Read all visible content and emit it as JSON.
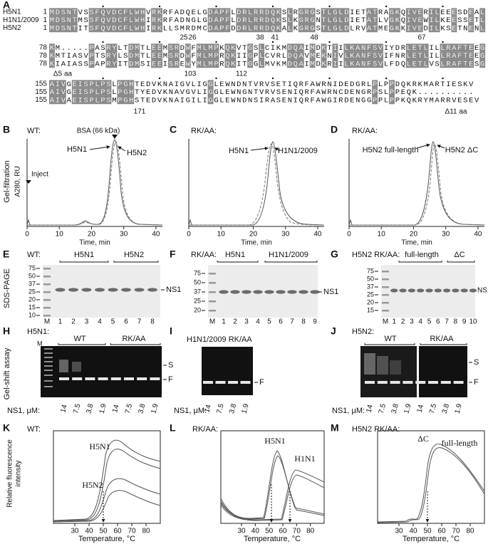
{
  "panel_a": {
    "label": "A",
    "blocks": [
      {
        "rows": [
          {
            "name": "H5N1",
            "start": "1",
            "sequence": "MDSNTVSSFQVDCFLWHVRKRFADQELGDAPFLDRLRRDQKSLRGRGSTLGLDIETATRAGKQIVERILEEESDEAL"
          },
          {
            "name": "H1N1/2009",
            "start": "1",
            "sequence": "MDSNTMSSFQVDCFLWHIRKRFADNGLGDAPFLDRLRRDQKSLKGRGNTLGLDIETATLVGKQIVEWILKEESSETL"
          },
          {
            "name": "H5N2",
            "start": "1",
            "sequence": "MDSNTITSFQVDCFLWHIRKLLSMRDMCDAPFDDRLRRDQKALKGRGSTLGLDLRVATMEGKKIVEDILKSETNENL"
          }
        ],
        "notes": [
          "25",
          "26",
          "38",
          "41",
          "48",
          "67"
        ]
      },
      {
        "rows": [
          {
            "name": "",
            "start": "78",
            "sequence": "KM.....PASRYLTDMTLEEMSRDWFMLMPKQKVTGSLCIKMDQAIMDKTIILKANFSVIYDRLETLILLRAFTEEG"
          },
          {
            "name": "",
            "start": "78",
            "sequence": "KMTIASVPTSRYLSDMTLEEMSRDWFMLMPRQKIIGPLCVRLDQAVMEKNIVLKANFSVIFNRLETLILLRAFTEEG"
          },
          {
            "name": "",
            "start": "78",
            "sequence": "KIAIASSPAPRYITDMSIEEISREWYMLMPRQKITGGLMVKMDQAIMDKRIILKANFSVLFDQLETLVSLRAFTESG"
          }
        ],
        "notes": [
          "Δ5 aa",
          "103",
          "112"
        ]
      },
      {
        "rows": [
          {
            "name": "",
            "start": "155",
            "sequence": "AIVGEISPLPSLPGHTEDVKNAIGVLIGGLEWNDNTVRVSETIQRFAWRNIDEDGRLPLPPDQKRKMARTIESKV"
          },
          {
            "name": "",
            "start": "155",
            "sequence": "AIVGEISPLPSLPGHTYEDVKNAVGVLIGGLEWNGNTVRVSENIQRFAWRNCDENGRPSLPPEQK.........."
          },
          {
            "name": "",
            "start": "155",
            "sequence": "AIVAEISPLPSMPGHSTEDVKNAIGILIGGLEWNDNSIRASENIQRFAWGIRDENGGPPLPPKQKRYMARRVESEV"
          }
        ],
        "notes": [
          "171",
          "Δ11 aa"
        ]
      }
    ]
  },
  "panel_b": {
    "label": "B",
    "condition": "WT:",
    "ylabel": "Gel-filtration",
    "axis_label": "A280, RU",
    "xlabel": "Time, min",
    "xlim": [
      0,
      42
    ],
    "xticks": [
      0,
      10,
      20,
      30,
      40
    ],
    "annotations": [
      "BSA (66 kDa)",
      "H5N1",
      "H5N2",
      "Inject"
    ]
  },
  "panel_c": {
    "label": "C",
    "condition": "RK/AA:",
    "xlabel": "Time, min",
    "xlim": [
      0,
      42
    ],
    "xticks": [
      0,
      10,
      20,
      30,
      40
    ],
    "annotations": [
      "H5N1",
      "H1N1/2009"
    ]
  },
  "panel_d": {
    "label": "D",
    "condition": "RK/AA:",
    "xlabel": "Time, min",
    "xlim": [
      0,
      42
    ],
    "xticks": [
      0,
      10,
      20,
      30,
      40
    ],
    "annotations": [
      "H5N2 full-length",
      "H5N2 ΔC"
    ]
  },
  "panel_e": {
    "label": "E",
    "condition": "WT:",
    "groups": [
      "H5N1",
      "H5N2"
    ],
    "ylabel": "SDS-PAGE",
    "markers": [
      "75",
      "50",
      "37",
      "25",
      "20",
      "15",
      "10"
    ],
    "band_label": "NS1",
    "lanes": [
      "M",
      "1",
      "2",
      "3",
      "4",
      "5",
      "6",
      "7",
      "8"
    ]
  },
  "panel_f": {
    "label": "F",
    "condition": "RK/AA:",
    "groups": [
      "H5N1",
      "H1N1/2009"
    ],
    "markers": [
      "75",
      "50",
      "37",
      "25",
      "20"
    ],
    "band_label": "NS1",
    "lanes": [
      "M",
      "1",
      "2",
      "3",
      "4",
      "5",
      "6",
      "7",
      "8",
      "9"
    ]
  },
  "panel_g": {
    "label": "G",
    "condition": "H5N2 RK/AA:",
    "groups": [
      "full-length",
      "ΔC"
    ],
    "markers": [
      "75",
      "50",
      "37",
      "25",
      "20",
      "15"
    ],
    "band_label": "NS1",
    "lanes": [
      "M",
      "1",
      "2",
      "3",
      "4",
      "5",
      "6",
      "7",
      "8",
      "9",
      "10"
    ]
  },
  "panel_h": {
    "label": "H",
    "condition": "H5N1:",
    "groups": [
      "WT",
      "RK/AA"
    ],
    "ylabel": "Gel-shift assay",
    "marker": "M",
    "bands": [
      "S",
      "F"
    ],
    "conc_label": "NS1, μM:",
    "concentrations": [
      "14",
      "7.5",
      "3.8",
      "1.9",
      "14",
      "7.5",
      "3.8",
      "1.9"
    ]
  },
  "panel_i": {
    "label": "I",
    "condition": "H1N1/2009 RK/AA",
    "bands": [
      "F"
    ],
    "conc_label": "NS1, μM:",
    "concentrations": [
      "14",
      "7.5",
      "3.8",
      "1.9"
    ]
  },
  "panel_j": {
    "label": "J",
    "condition": "H5N2:",
    "groups": [
      "WT",
      "RK/AA"
    ],
    "bands": [
      "S",
      "F"
    ],
    "conc_label": "NS1, μM:",
    "concentrations": [
      "14",
      "7.5",
      "3.8",
      "1.9",
      "14",
      "7.5",
      "3.8",
      "1.9"
    ]
  },
  "panel_k": {
    "label": "K",
    "condition": "WT:",
    "ylabel": [
      "Relative fluorescence",
      "intensity"
    ],
    "xlabel": "Temperature, °C",
    "xlim": [
      15,
      90
    ],
    "xticks": [
      30,
      40,
      50,
      60,
      70,
      80
    ],
    "annotations": [
      "H5N1",
      "H5N2"
    ]
  },
  "panel_l": {
    "label": "L",
    "condition": "RK/AA:",
    "xlabel": "Temperature, °C",
    "xlim": [
      15,
      90
    ],
    "xticks": [
      30,
      40,
      50,
      60,
      70,
      80
    ],
    "annotations": [
      "H5N1",
      "H1N1"
    ]
  },
  "panel_m": {
    "label": "M",
    "condition": "H5N2 RK/AA:",
    "xlabel": "Temperature, °C",
    "xlim": [
      15,
      90
    ],
    "xticks": [
      30,
      40,
      50,
      60,
      70,
      80
    ],
    "annotations": [
      "ΔC",
      "full-length"
    ]
  }
}
